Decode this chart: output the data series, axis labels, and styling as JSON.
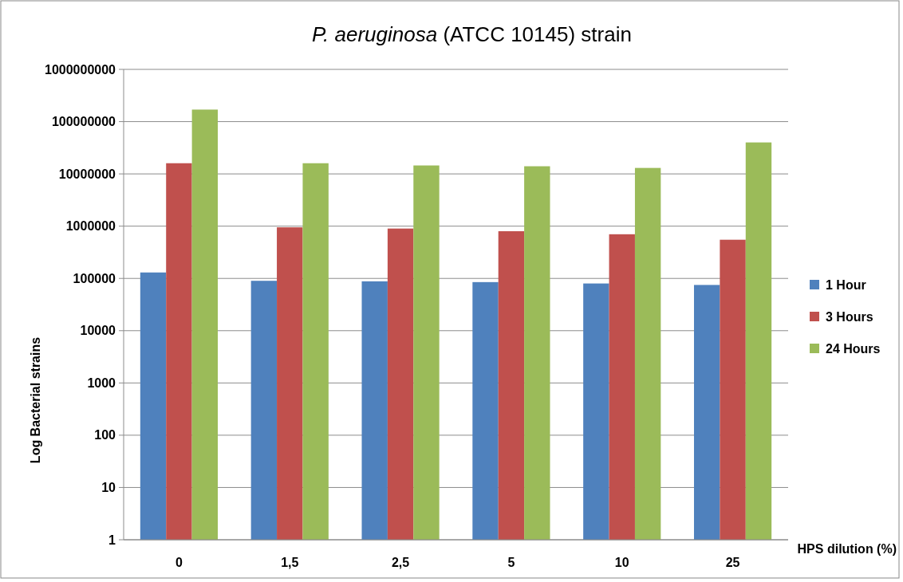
{
  "chart_data": {
    "type": "bar",
    "title": "P. aeruginosa (ATCC 10145) strain",
    "xlabel": "HPS dilution (%)",
    "ylabel": "Log Bacterial strains",
    "categories": [
      "0",
      "1,5",
      "2,5",
      "5",
      "10",
      "25"
    ],
    "series": [
      {
        "name": "1 Hour",
        "color": "#4f81bd",
        "values": [
          130000,
          90000,
          88000,
          85000,
          80000,
          75000
        ]
      },
      {
        "name": "3 Hours",
        "color": "#c0504d",
        "values": [
          16000000,
          950000,
          900000,
          800000,
          700000,
          550000
        ]
      },
      {
        "name": "24 Hours",
        "color": "#9bbb59",
        "values": [
          170000000,
          16000000,
          14500000,
          14000000,
          13000000,
          40000000
        ]
      }
    ],
    "log": true,
    "ylim": [
      1,
      1000000000
    ],
    "yticks": [
      1,
      10,
      100,
      1000,
      10000,
      100000,
      1000000,
      10000000,
      100000000,
      1000000000
    ],
    "grid": "y",
    "legend": "right"
  }
}
